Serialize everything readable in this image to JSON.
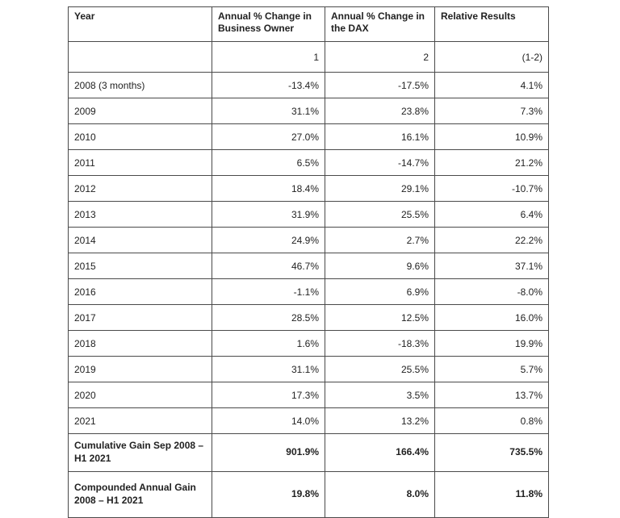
{
  "colors": {
    "background": "#ffffff",
    "border": "#4a4a4a",
    "text": "#222222"
  },
  "chart_data": {
    "type": "table",
    "columns": [
      "Year",
      "Annual % Change in Business Owner",
      "Annual % Change in the DAX",
      "Relative Results"
    ],
    "column_number_row": [
      "",
      "1",
      "2",
      "(1-2)"
    ],
    "rows": [
      [
        "2008 (3 months)",
        "-13.4%",
        "-17.5%",
        "4.1%"
      ],
      [
        "2009",
        "31.1%",
        "23.8%",
        "7.3%"
      ],
      [
        "2010",
        "27.0%",
        "16.1%",
        "10.9%"
      ],
      [
        "2011",
        "6.5%",
        "-14.7%",
        "21.2%"
      ],
      [
        "2012",
        "18.4%",
        "29.1%",
        "-10.7%"
      ],
      [
        "2013",
        "31.9%",
        "25.5%",
        "6.4%"
      ],
      [
        "2014",
        "24.9%",
        "2.7%",
        "22.2%"
      ],
      [
        "2015",
        "46.7%",
        "9.6%",
        "37.1%"
      ],
      [
        "2016",
        "-1.1%",
        "6.9%",
        "-8.0%"
      ],
      [
        "2017",
        "28.5%",
        "12.5%",
        "16.0%"
      ],
      [
        "2018",
        "1.6%",
        "-18.3%",
        "19.9%"
      ],
      [
        "2019",
        "31.1%",
        "25.5%",
        "5.7%"
      ],
      [
        "2020",
        "17.3%",
        "3.5%",
        "13.7%"
      ],
      [
        "2021",
        "14.0%",
        "13.2%",
        "0.8%"
      ]
    ],
    "summary_rows": [
      [
        "Cumulative Gain Sep 2008 – H1 2021",
        "901.9%",
        "166.4%",
        "735.5%"
      ],
      [
        "Compounded Annual Gain 2008 – H1 2021",
        "19.8%",
        "8.0%",
        "11.8%"
      ]
    ]
  }
}
